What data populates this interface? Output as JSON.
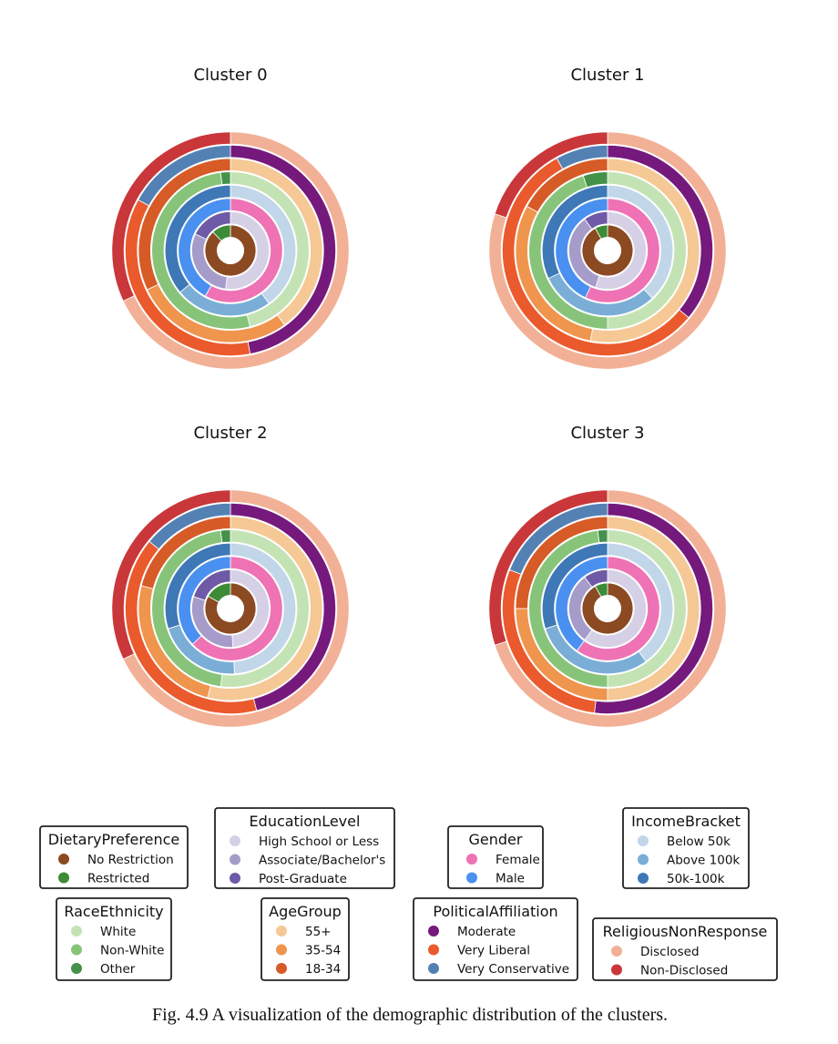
{
  "caption": "Fig. 4.9 A visualization of the demographic distribution of the clusters.",
  "chart_data": {
    "type": "pie",
    "ring_order": [
      "DietaryPreference",
      "EducationLevel",
      "Gender",
      "IncomeBracket",
      "RaceEthnicity",
      "AgeGroup",
      "PoliticalAffiliation",
      "ReligiousNonResponse"
    ],
    "variables": [
      {
        "name": "DietaryPreference",
        "categories": [
          "No Restriction",
          "Restricted"
        ],
        "colors": [
          "#8b4a22",
          "#3d8b37"
        ]
      },
      {
        "name": "EducationLevel",
        "categories": [
          "High School or Less",
          "Associate/Bachelor's",
          "Post-Graduate"
        ],
        "colors": [
          "#d6d0e6",
          "#a59cc9",
          "#6e5aa6"
        ]
      },
      {
        "name": "Gender",
        "categories": [
          "Female",
          "Male"
        ],
        "colors": [
          "#ee72b4",
          "#4a90f0"
        ]
      },
      {
        "name": "IncomeBracket",
        "categories": [
          "Below 50k",
          "Above 100k",
          "50k-100k"
        ],
        "colors": [
          "#c2d6ea",
          "#7aaed6",
          "#3e78b6"
        ]
      },
      {
        "name": "RaceEthnicity",
        "categories": [
          "White",
          "Non-White",
          "Other"
        ],
        "colors": [
          "#c4e3b4",
          "#87c47a",
          "#44914a"
        ]
      },
      {
        "name": "AgeGroup",
        "categories": [
          "55+",
          "35-54",
          "18-34"
        ],
        "colors": [
          "#f5c895",
          "#ef954e",
          "#d65b27"
        ]
      },
      {
        "name": "PoliticalAffiliation",
        "categories": [
          "Moderate",
          "Very Liberal",
          "Very Conservative"
        ],
        "colors": [
          "#751a7c",
          "#ea5a2c",
          "#5481b4"
        ]
      },
      {
        "name": "ReligiousNonResponse",
        "categories": [
          "Disclosed",
          "Non-Disclosed"
        ],
        "colors": [
          "#f2b196",
          "#c9373a"
        ]
      }
    ],
    "clusters": [
      {
        "title": "Cluster 0",
        "proportions": [
          [
            0.88,
            0.12
          ],
          [
            0.52,
            0.3,
            0.18
          ],
          [
            0.58,
            0.42
          ],
          [
            0.4,
            0.24,
            0.36
          ],
          [
            0.46,
            0.52,
            0.02
          ],
          [
            0.4,
            0.28,
            0.32
          ],
          [
            0.47,
            0.36,
            0.17
          ],
          [
            0.68,
            0.32
          ]
        ]
      },
      {
        "title": "Cluster 1",
        "proportions": [
          [
            0.92,
            0.08
          ],
          [
            0.55,
            0.35,
            0.1
          ],
          [
            0.57,
            0.43
          ],
          [
            0.38,
            0.3,
            0.32
          ],
          [
            0.5,
            0.45,
            0.05
          ],
          [
            0.53,
            0.3,
            0.17
          ],
          [
            0.36,
            0.56,
            0.08
          ],
          [
            0.8,
            0.2
          ]
        ]
      },
      {
        "title": "Cluster 2",
        "proportions": [
          [
            0.83,
            0.17
          ],
          [
            0.49,
            0.31,
            0.2
          ],
          [
            0.63,
            0.37
          ],
          [
            0.49,
            0.21,
            0.3
          ],
          [
            0.52,
            0.46,
            0.02
          ],
          [
            0.54,
            0.25,
            0.21
          ],
          [
            0.46,
            0.4,
            0.14
          ],
          [
            0.68,
            0.32
          ]
        ]
      },
      {
        "title": "Cluster 3",
        "proportions": [
          [
            0.92,
            0.08
          ],
          [
            0.6,
            0.3,
            0.1
          ],
          [
            0.6,
            0.4
          ],
          [
            0.4,
            0.3,
            0.3
          ],
          [
            0.5,
            0.48,
            0.02
          ],
          [
            0.5,
            0.25,
            0.25
          ],
          [
            0.52,
            0.29,
            0.19
          ],
          [
            0.7,
            0.3
          ]
        ]
      }
    ]
  }
}
